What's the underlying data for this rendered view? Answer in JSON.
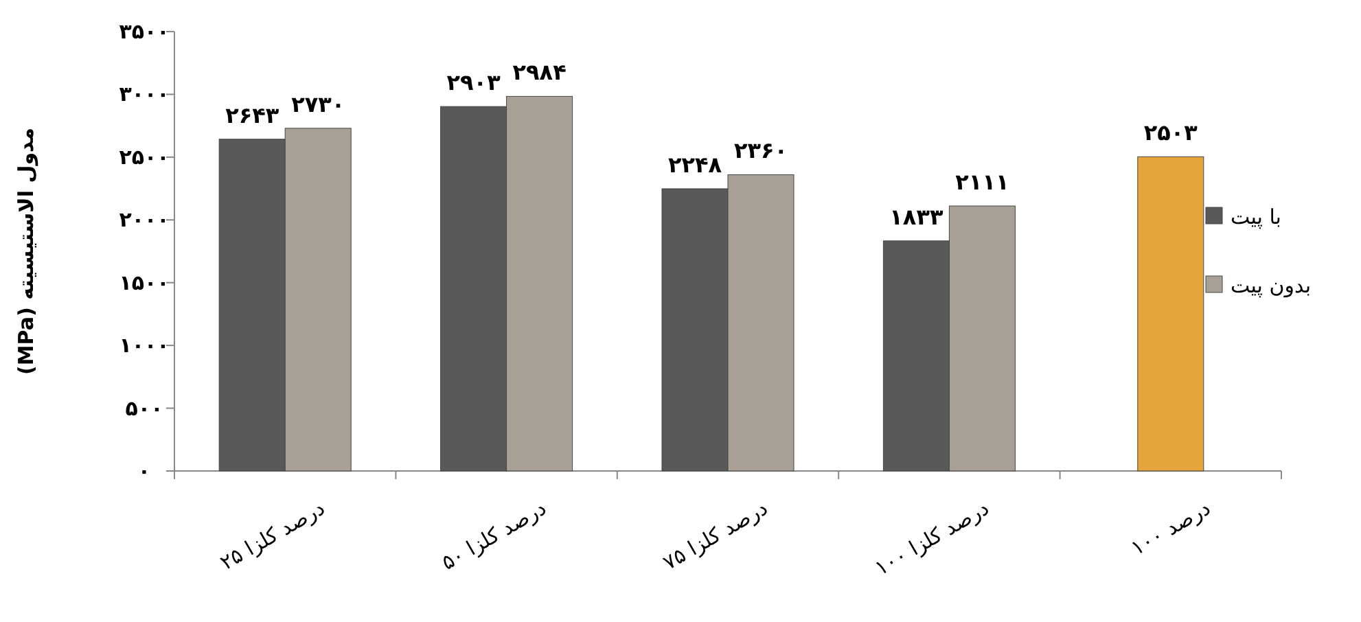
{
  "chart_data": {
    "type": "bar",
    "ylabel": "مدول الاستیسیته (MPa)",
    "categories": [
      "درصد کلزا ۲۵",
      "درصد کلزا ۵۰",
      "درصد کلزا ۷۵",
      "درصد کلزا ۱۰۰",
      "درصد ۱۰۰"
    ],
    "series": [
      {
        "name": "با پیت",
        "color": "#595959",
        "colors": [
          "#595959",
          "#595959",
          "#595959",
          "#595959",
          "#e6a53c"
        ],
        "values": [
          2643,
          2903,
          2248,
          1833,
          2503
        ],
        "value_labels": [
          "۲۶۴۳",
          "۲۹۰۳",
          "۲۲۴۸",
          "۱۸۳۳",
          "۲۵۰۳"
        ]
      },
      {
        "name": "بدون پیت",
        "color": "#a9a095",
        "values": [
          2730,
          2984,
          2360,
          2111,
          null
        ],
        "value_labels": [
          "۲۷۳۰",
          "۲۹۸۴",
          "۲۳۶۰",
          "۲۱۱۱",
          null
        ]
      }
    ],
    "ylim": [
      0,
      3500
    ],
    "yticks": [
      {
        "value": 0,
        "label": "۰"
      },
      {
        "value": 500,
        "label": "۵۰۰"
      },
      {
        "value": 1000,
        "label": "۱۰۰۰"
      },
      {
        "value": 1500,
        "label": "۱۵۰۰"
      },
      {
        "value": 2000,
        "label": "۲۰۰۰"
      },
      {
        "value": 2500,
        "label": "۲۵۰۰"
      },
      {
        "value": 3000,
        "label": "۳۰۰۰"
      },
      {
        "value": 3500,
        "label": "۳۵۰۰"
      }
    ],
    "legend": "right",
    "grid": false
  }
}
